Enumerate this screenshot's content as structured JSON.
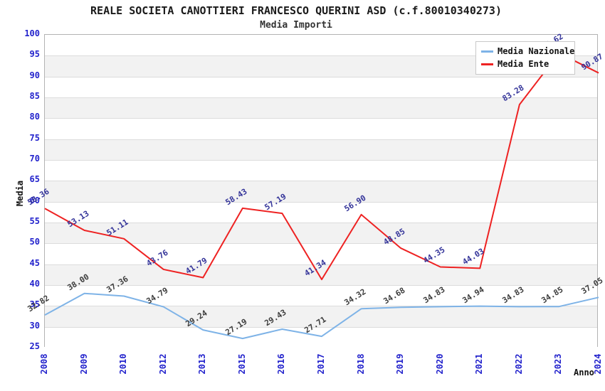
{
  "title": "REALE SOCIETA CANOTTIERI FRANCESCO QUERINI ASD (c.f.80010340273)",
  "subtitle": "Media Importi",
  "colors": {
    "tick_label": "#2222cc",
    "band_fill": "#f2f2f2",
    "gridline": "#dcdcdc",
    "plot_border": "#b3b3b3"
  },
  "chart_data": {
    "type": "line",
    "title": "REALE SOCIETA CANOTTIERI FRANCESCO QUERINI ASD (c.f.80010340273)",
    "subtitle": "Media Importi",
    "xlabel": "Anno",
    "ylabel": "Media",
    "ylim": [
      25,
      100
    ],
    "ytick_step": 5,
    "yticks": [
      100,
      95,
      90,
      85,
      80,
      75,
      70,
      65,
      60,
      55,
      50,
      45,
      40,
      35,
      30,
      25
    ],
    "grid": "horizontal gridlines with alternating gray/white bands",
    "legend_position": "top-right inside plot",
    "categories": [
      "2008",
      "2009",
      "2010",
      "2012",
      "2013",
      "2015",
      "2016",
      "2017",
      "2018",
      "2019",
      "2020",
      "2021",
      "2022",
      "2023",
      "2024"
    ],
    "series": [
      {
        "name": "Media Nazionale",
        "color": "#7eb3e7",
        "label_color": "#3c3c3c",
        "values": [
          32.82,
          38.0,
          37.36,
          34.79,
          29.24,
          27.19,
          29.43,
          27.71,
          34.32,
          34.68,
          34.83,
          34.94,
          34.83,
          34.85,
          37.05
        ],
        "labels": [
          "32.82",
          "38.00",
          "37.36",
          "34.79",
          "29.24",
          "27.19",
          "29.43",
          "27.71",
          "34.32",
          "34.68",
          "34.83",
          "34.94",
          "34.83",
          "34.85",
          "37.05"
        ]
      },
      {
        "name": "Media Ente",
        "color": "#ee2222",
        "label_color": "#333399",
        "values": [
          58.36,
          53.13,
          51.11,
          43.76,
          41.79,
          58.43,
          57.19,
          41.34,
          56.9,
          48.85,
          44.35,
          44.03,
          83.28,
          95.62,
          90.87
        ],
        "labels": [
          "58.36",
          "53.13",
          "51.11",
          "43.76",
          "41.79",
          "58.43",
          "57.19",
          "41.34",
          "56.90",
          "48.85",
          "44.35",
          "44.03",
          "83.28",
          "95.62",
          "90.87"
        ],
        "note": "2023 label partially hidden behind legend; visible fragment reads '- 62'"
      }
    ]
  }
}
